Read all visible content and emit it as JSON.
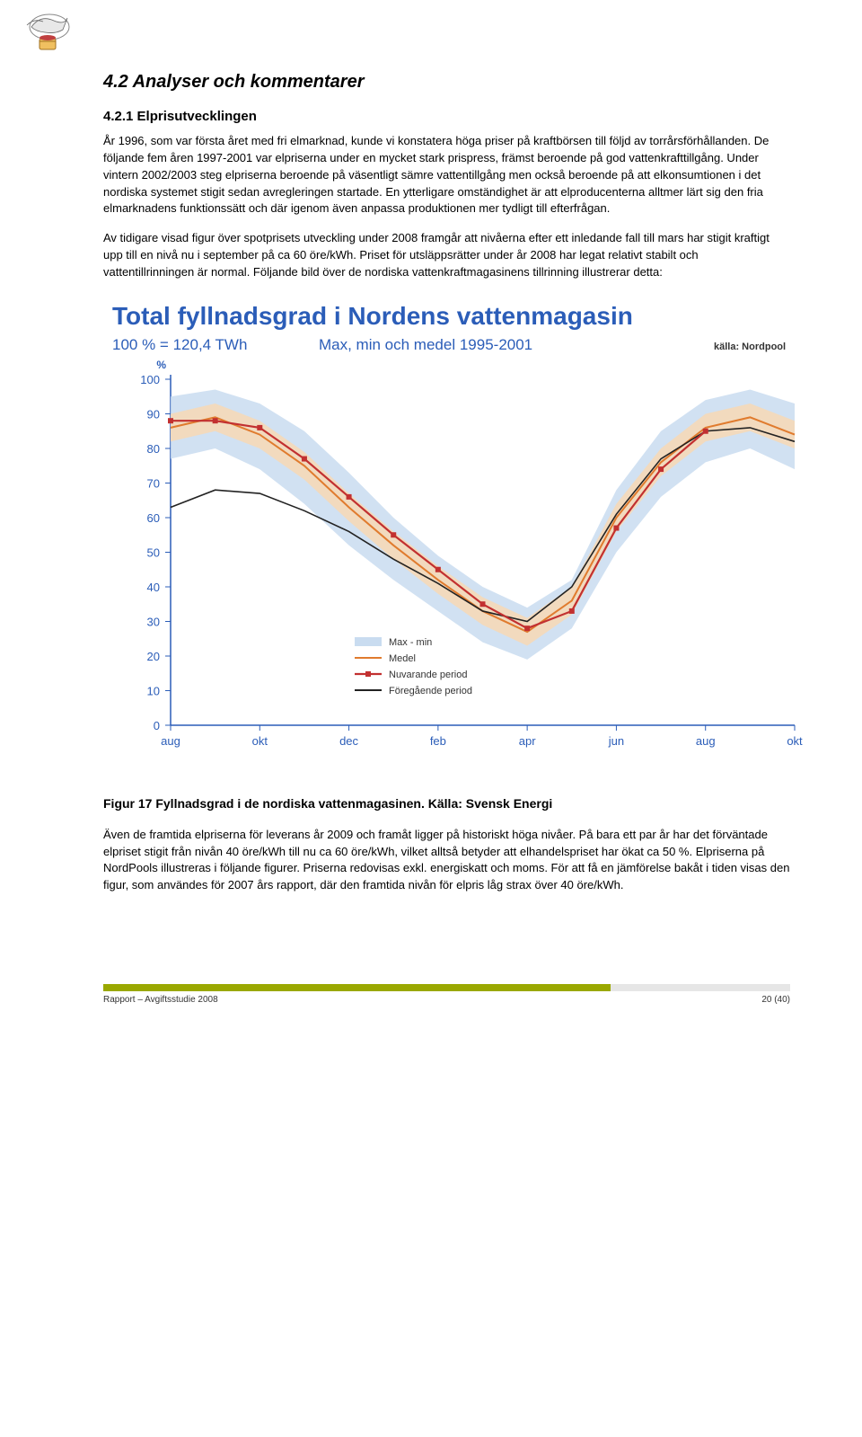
{
  "section_heading": "4.2 Analyser och kommentarer",
  "subsection_heading": "4.2.1 Elprisutvecklingen",
  "para1": "År 1996, som var första året med fri elmarknad, kunde vi konstatera höga priser på kraftbörsen till följd av torrårsförhållanden. De följande fem åren 1997-2001 var elpriserna under en mycket stark prispress, främst beroende på god vattenkrafttillgång. Under vintern 2002/2003 steg elpriserna beroende på väsentligt sämre vattentillgång men också beroende på att elkonsumtionen i det nordiska systemet stigit sedan avregleringen startade. En ytterligare omständighet är att elproducenterna alltmer lärt sig den fria elmarknadens funktionssätt och där igenom även anpassa produktionen mer tydligt till efterfrågan.",
  "para2": "Av tidigare visad figur över spotprisets utveckling under 2008 framgår att nivåerna efter ett inledande fall till mars har stigit kraftigt upp till en nivå nu i september på ca 60 öre/kWh. Priset för utsläppsrätter under år 2008 har legat relativt stabilt och vattentillrinningen är normal. Följande bild över de nordiska vattenkraftmagasinens tillrinning illustrerar detta:",
  "figure": {
    "type": "line",
    "title": "Total fyllnadsgrad i Nordens vattenmagasin",
    "subtitle_left": "100 % = 120,4 TWh",
    "subtitle_right": "Max, min och medel 1995-2001",
    "source": "källa: Nordpool",
    "y_label": "%",
    "y_ticks": [
      0,
      10,
      20,
      30,
      40,
      50,
      60,
      70,
      80,
      90,
      100
    ],
    "x_ticks": [
      "aug",
      "okt",
      "dec",
      "feb",
      "apr",
      "jun",
      "aug",
      "okt"
    ],
    "colors": {
      "band": "#c9dcf0",
      "band_inner": "#f5d9b8",
      "medel": "#e07b2e",
      "nuvarande": "#c23030",
      "foregaende": "#222222",
      "axis": "#2b5db8",
      "bg": "#ffffff"
    },
    "legend": [
      {
        "label": "Max - min",
        "color": "#c9dcf0",
        "type": "band"
      },
      {
        "label": "Medel",
        "color": "#e07b2e",
        "type": "line"
      },
      {
        "label": "Nuvarande period",
        "color": "#c23030",
        "type": "line_marker"
      },
      {
        "label": "Föregående period",
        "color": "#222222",
        "type": "line"
      }
    ],
    "series": {
      "max": [
        95,
        97,
        93,
        85,
        73,
        60,
        49,
        40,
        34,
        42,
        68,
        85,
        94,
        97,
        93
      ],
      "min": [
        77,
        80,
        74,
        64,
        52,
        42,
        33,
        24,
        19,
        28,
        50,
        66,
        76,
        80,
        74
      ],
      "medel": [
        86,
        89,
        84,
        75,
        63,
        52,
        42,
        33,
        27,
        36,
        60,
        76,
        86,
        89,
        84
      ],
      "nuvarande": [
        88,
        88,
        86,
        77,
        66,
        55,
        45,
        35,
        28,
        33,
        57,
        74,
        85
      ],
      "foregaende": [
        63,
        68,
        67,
        62,
        56,
        48,
        41,
        33,
        30,
        40,
        61,
        77,
        85,
        86,
        82
      ]
    }
  },
  "caption": "Figur 17 Fyllnadsgrad i de nordiska vattenmagasinen. Källa: Svensk Energi",
  "para3": "Även de framtida elpriserna för leverans år 2009 och framåt ligger på historiskt höga nivåer. På bara ett par år har det förväntade elpriset stigit från nivån 40 öre/kWh till nu ca 60 öre/kWh, vilket alltså betyder att elhandelspriset har ökat ca 50 %. Elpriserna på NordPools illustreras i följande figurer. Priserna redovisas exkl. energiskatt och moms. För att få en jämförelse bakåt i tiden visas den figur, som användes för 2007 års rapport, där den framtida nivån för elpris låg strax över 40 öre/kWh.",
  "footer_left": "Rapport – Avgiftsstudie 2008",
  "footer_right": "20 (40)"
}
